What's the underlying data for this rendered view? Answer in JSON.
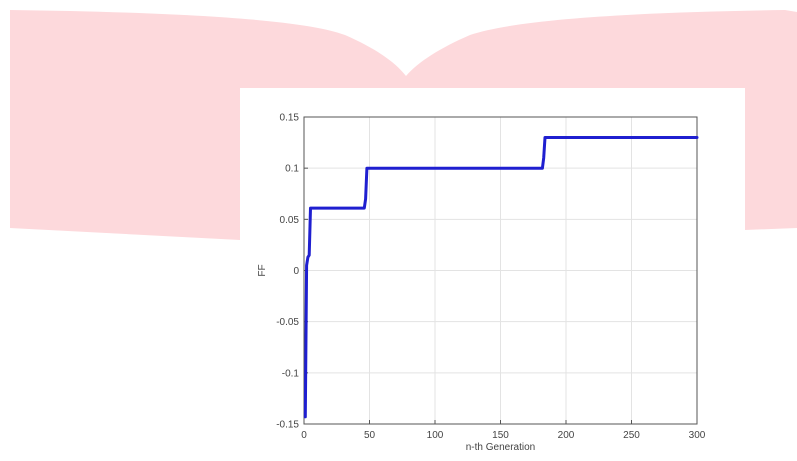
{
  "chart_data": {
    "type": "line",
    "title": "",
    "xlabel": "n-th Generation",
    "ylabel": "FF",
    "xlim": [
      0,
      300
    ],
    "ylim": [
      -0.15,
      0.15
    ],
    "xticks": [
      0,
      50,
      100,
      150,
      200,
      250,
      300
    ],
    "yticks": [
      -0.15,
      -0.1,
      -0.05,
      0,
      0.05,
      0.1,
      0.15
    ],
    "xtick_labels": [
      "0",
      "50",
      "100",
      "150",
      "200",
      "250",
      "300"
    ],
    "ytick_labels": [
      "-0.15",
      "-0.1",
      "-0.05",
      "0",
      "0.05",
      "0.1",
      "0.15"
    ],
    "grid": true,
    "legend": "none",
    "series": [
      {
        "color": "#1f1fd0",
        "x": [
          1,
          2,
          3,
          4,
          5,
          46,
          47,
          48,
          182,
          183,
          184,
          300
        ],
        "y": [
          -0.143,
          0.005,
          0.013,
          0.015,
          0.061,
          0.061,
          0.07,
          0.1,
          0.1,
          0.11,
          0.13,
          0.13
        ]
      }
    ]
  },
  "colors": {
    "background_shape": "#fdd9dc",
    "grid": "#e3e3e3",
    "axis": "#555555"
  }
}
